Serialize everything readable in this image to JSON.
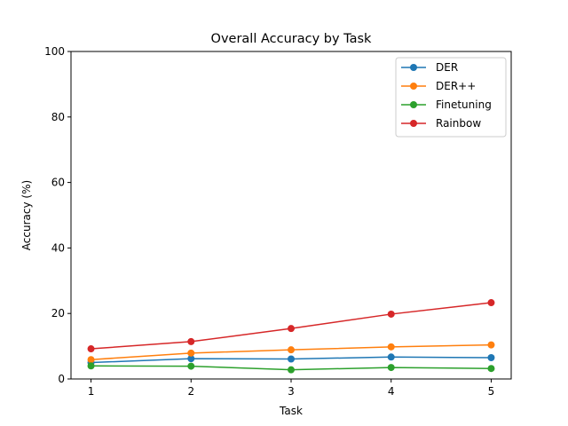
{
  "chart_data": {
    "type": "line",
    "title": "Overall Accuracy by Task",
    "xlabel": "Task",
    "ylabel": "Accuracy (%)",
    "x": [
      1,
      2,
      3,
      4,
      5
    ],
    "xticks": [
      1,
      2,
      3,
      4,
      5
    ],
    "yticks": [
      0,
      20,
      40,
      60,
      80,
      100
    ],
    "ylim": [
      0,
      100
    ],
    "xlim": [
      0.8,
      5.2
    ],
    "grid": false,
    "legend_position": "top-right",
    "series": [
      {
        "name": "DER",
        "color": "#1f77b4",
        "values": [
          5.0,
          6.2,
          6.1,
          6.7,
          6.5
        ]
      },
      {
        "name": "DER++",
        "color": "#ff7f0e",
        "values": [
          5.9,
          7.9,
          8.9,
          9.8,
          10.4
        ]
      },
      {
        "name": "Finetuning",
        "color": "#2ca02c",
        "values": [
          4.0,
          3.9,
          2.8,
          3.5,
          3.2
        ]
      },
      {
        "name": "Rainbow",
        "color": "#d62728",
        "values": [
          9.2,
          11.4,
          15.4,
          19.8,
          23.3
        ]
      }
    ]
  }
}
